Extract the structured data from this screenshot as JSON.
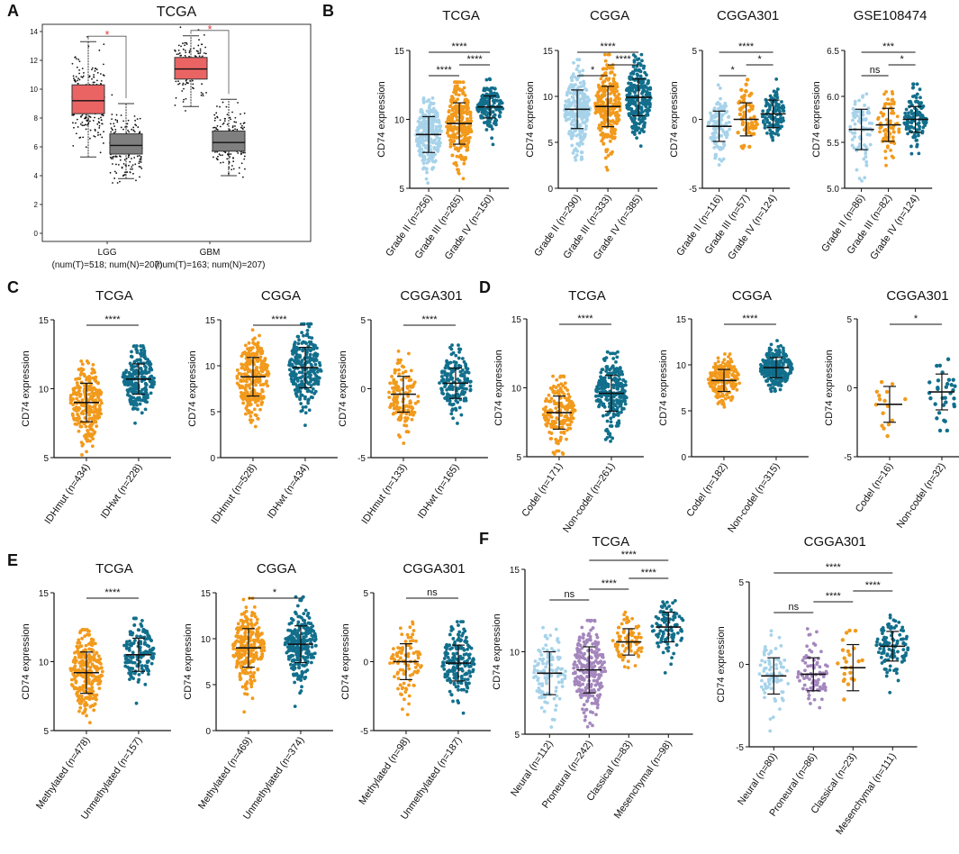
{
  "colors": {
    "light_blue": "#a7d3ea",
    "orange": "#f29a1c",
    "teal": "#126f8c",
    "purple": "#a487bd",
    "box_red": "#ea6464",
    "box_gray": "#7f7f7f",
    "star_red": "#e23b3b"
  },
  "chart_data": [
    {
      "panel": "A",
      "type": "box",
      "title": "TCGA",
      "ylim": [
        0,
        14
      ],
      "yticks": [
        "0",
        "2",
        "4",
        "6",
        "8",
        "10",
        "12",
        "14"
      ],
      "groups": [
        {
          "label": "LGG",
          "sublabel": "(num(T)=518; num(N)=207)",
          "tumor": {
            "q1": 8.3,
            "median": 9.2,
            "q3": 10.3,
            "whisker_low": 5.3,
            "whisker_high": 13.3
          },
          "normal": {
            "q1": 5.5,
            "median": 6.1,
            "q3": 6.9,
            "whisker_low": 3.8,
            "whisker_high": 9.0
          }
        },
        {
          "label": "GBM",
          "sublabel": "(num(T)=163; num(N)=207)",
          "tumor": {
            "q1": 10.7,
            "median": 11.4,
            "q3": 12.2,
            "whisker_low": 8.8,
            "whisker_high": 13.7
          },
          "normal": {
            "q1": 5.7,
            "median": 6.3,
            "q3": 7.1,
            "whisker_low": 4.0,
            "whisker_high": 9.3
          }
        }
      ],
      "significance": [
        "*",
        "*"
      ]
    },
    {
      "panel": "B",
      "type": "scatter",
      "title": "TCGA",
      "ylabel": "CD74 expression",
      "ylim": [
        5,
        15
      ],
      "yticks": [
        "5",
        "10",
        "15"
      ],
      "categories": [
        "Grade II (n=256)",
        "Grade III (n=265)",
        "Grade IV (n=150)"
      ],
      "means": [
        8.9,
        9.7,
        10.9
      ],
      "sds": [
        1.3,
        1.5,
        0.8
      ],
      "spread": [
        2.2,
        2.5,
        1.7
      ],
      "comparisons": [
        {
          "a": 0,
          "b": 1,
          "label": "****"
        },
        {
          "a": 1,
          "b": 2,
          "label": "****"
        },
        {
          "a": 0,
          "b": 2,
          "label": "****"
        }
      ]
    },
    {
      "panel": "",
      "type": "scatter",
      "title": "CGGA",
      "ylabel": "CD74 expression",
      "ylim": [
        0,
        15
      ],
      "yticks": [
        "0",
        "5",
        "10",
        "15"
      ],
      "categories": [
        "Grade II (n=290)",
        "Grade III (n=333)",
        "Grade IV (n=385)"
      ],
      "means": [
        8.6,
        8.9,
        9.9
      ],
      "sds": [
        2.1,
        2.2,
        2.0
      ],
      "spread": [
        4.5,
        4.8,
        4.2
      ],
      "comparisons": [
        {
          "a": 0,
          "b": 1,
          "label": "*"
        },
        {
          "a": 1,
          "b": 2,
          "label": "****"
        },
        {
          "a": 0,
          "b": 2,
          "label": "****"
        }
      ]
    },
    {
      "panel": "",
      "type": "scatter",
      "title": "CGGA301",
      "ylabel": "CD74 expression",
      "ylim": [
        -5,
        5
      ],
      "yticks": [
        "-5",
        "0",
        "5"
      ],
      "categories": [
        "Grade II (n=116)",
        "Grade III (n=57)",
        "Grade IV (n=124)"
      ],
      "means": [
        -0.5,
        0.0,
        0.4
      ],
      "sds": [
        1.1,
        1.2,
        1.0
      ],
      "spread": [
        2.5,
        2.4,
        2.3
      ],
      "comparisons": [
        {
          "a": 0,
          "b": 1,
          "label": "*"
        },
        {
          "a": 1,
          "b": 2,
          "label": "*"
        },
        {
          "a": 0,
          "b": 2,
          "label": "****"
        }
      ]
    },
    {
      "panel": "",
      "type": "scatter",
      "title": "GSE108474",
      "ylabel": "CD74 expression",
      "ylim": [
        5.0,
        6.5
      ],
      "yticks": [
        "5.0",
        "5.5",
        "6.0",
        "6.5"
      ],
      "categories": [
        "Grade II (n=86)",
        "Grade III (n=82)",
        "Grade IV (n=124)"
      ],
      "means": [
        5.64,
        5.69,
        5.75
      ],
      "sds": [
        0.22,
        0.18,
        0.14
      ],
      "spread": [
        0.35,
        0.3,
        0.32
      ],
      "comparisons": [
        {
          "a": 0,
          "b": 1,
          "label": "ns"
        },
        {
          "a": 1,
          "b": 2,
          "label": "*"
        },
        {
          "a": 0,
          "b": 2,
          "label": "***"
        }
      ]
    },
    {
      "panel": "C",
      "type": "scatter",
      "title": "TCGA",
      "ylabel": "CD74 expression",
      "ylim": [
        5,
        15
      ],
      "yticks": [
        "5",
        "10",
        "15"
      ],
      "categories": [
        "IDHmut (n=434)",
        "IDHwt (n=228)"
      ],
      "means": [
        9.0,
        10.7
      ],
      "sds": [
        1.4,
        1.1
      ],
      "spread": [
        2.5,
        2.0
      ],
      "comparisons": [
        {
          "a": 0,
          "b": 1,
          "label": "****"
        }
      ]
    },
    {
      "panel": "",
      "type": "scatter",
      "title": "CGGA",
      "ylabel": "CD74 expression",
      "ylim": [
        0,
        15
      ],
      "yticks": [
        "0",
        "5",
        "10",
        "15"
      ],
      "categories": [
        "IDHmut (n=528)",
        "IDHwt (n=434)"
      ],
      "means": [
        8.8,
        9.8
      ],
      "sds": [
        2.1,
        2.2
      ],
      "spread": [
        4.5,
        4.5
      ],
      "comparisons": [
        {
          "a": 0,
          "b": 1,
          "label": "****"
        }
      ]
    },
    {
      "panel": "",
      "type": "scatter",
      "title": "CGGA301",
      "ylabel": "CD74 expression",
      "ylim": [
        -5,
        5
      ],
      "yticks": [
        "-5",
        "0",
        "5"
      ],
      "categories": [
        "IDHmut (n=133)",
        "IDHwt (n=165)"
      ],
      "means": [
        -0.4,
        0.4
      ],
      "sds": [
        1.3,
        1.1
      ],
      "spread": [
        2.6,
        2.3
      ],
      "comparisons": [
        {
          "a": 0,
          "b": 1,
          "label": "****"
        }
      ]
    },
    {
      "panel": "D",
      "type": "scatter",
      "title": "TCGA",
      "ylabel": "CD74 expression",
      "ylim": [
        5,
        15
      ],
      "yticks": [
        "5",
        "10",
        "15"
      ],
      "categories": [
        "Codel (n=171)",
        "Non-codel (n=261)"
      ],
      "means": [
        8.2,
        9.6
      ],
      "sds": [
        1.2,
        1.3
      ],
      "spread": [
        2.2,
        2.5
      ],
      "comparisons": [
        {
          "a": 0,
          "b": 1,
          "label": "****"
        }
      ]
    },
    {
      "panel": "",
      "type": "scatter",
      "title": "CGGA",
      "ylabel": "CD74 expression",
      "ylim": [
        0,
        15
      ],
      "yticks": [
        "0",
        "5",
        "10",
        "15"
      ],
      "categories": [
        "Codel (n=182)",
        "Non-codel (n=315)"
      ],
      "means": [
        8.3,
        9.7
      ],
      "sds": [
        1.2,
        1.1
      ],
      "spread": [
        2.4,
        2.6
      ],
      "comparisons": [
        {
          "a": 0,
          "b": 1,
          "label": "****"
        }
      ]
    },
    {
      "panel": "",
      "type": "scatter",
      "title": "CGGA301",
      "ylabel": "CD74 expression",
      "ylim": [
        -5,
        5
      ],
      "yticks": [
        "-5",
        "0",
        "5"
      ],
      "categories": [
        "Codel (n=16)",
        "Non-codel (n=32)"
      ],
      "means": [
        -1.2,
        -0.3
      ],
      "sds": [
        1.3,
        1.3
      ],
      "spread": [
        1.6,
        2.0
      ],
      "comparisons": [
        {
          "a": 0,
          "b": 1,
          "label": "*"
        }
      ]
    },
    {
      "panel": "E",
      "type": "scatter",
      "title": "TCGA",
      "ylabel": "CD74 expression",
      "ylim": [
        5,
        15
      ],
      "yticks": [
        "5",
        "10",
        "15"
      ],
      "categories": [
        "Methylated (n=478)",
        "Unmethylated (n=157)"
      ],
      "means": [
        9.2,
        10.5
      ],
      "sds": [
        1.5,
        1.2
      ],
      "spread": [
        2.6,
        2.2
      ],
      "comparisons": [
        {
          "a": 0,
          "b": 1,
          "label": "****"
        }
      ]
    },
    {
      "panel": "",
      "type": "scatter",
      "title": "CGGA",
      "ylabel": "CD74 expression",
      "ylim": [
        0,
        15
      ],
      "yticks": [
        "0",
        "5",
        "10",
        "15"
      ],
      "categories": [
        "Methylated (n=469)",
        "Unmethylated (n=374)"
      ],
      "means": [
        9.0,
        9.4
      ],
      "sds": [
        2.1,
        2.0
      ],
      "spread": [
        4.5,
        4.3
      ],
      "comparisons": [
        {
          "a": 0,
          "b": 1,
          "label": "*"
        }
      ]
    },
    {
      "panel": "",
      "type": "scatter",
      "title": "CGGA301",
      "ylabel": "CD74 expression",
      "ylim": [
        -5,
        5
      ],
      "yticks": [
        "-5",
        "0",
        "5"
      ],
      "categories": [
        "Methylated (n=98)",
        "Unmethylated (n=187)"
      ],
      "means": [
        0.0,
        -0.1
      ],
      "sds": [
        1.3,
        1.3
      ],
      "spread": [
        2.4,
        2.5
      ],
      "comparisons": [
        {
          "a": 0,
          "b": 1,
          "label": "ns"
        }
      ]
    },
    {
      "panel": "F",
      "type": "scatter",
      "title": "TCGA",
      "ylabel": "CD74 expression",
      "ylim": [
        5,
        15
      ],
      "yticks": [
        "5",
        "10",
        "15"
      ],
      "categories": [
        "Neural (n=112)",
        "Proneural (n=242)",
        "Classical (n=83)",
        "Mesenchymal (n=98)"
      ],
      "means": [
        8.7,
        8.9,
        10.6,
        11.5
      ],
      "sds": [
        1.3,
        1.4,
        0.8,
        0.9
      ],
      "spread": [
        2.3,
        2.5,
        1.5,
        1.8
      ],
      "comparisons": [
        {
          "a": 0,
          "b": 1,
          "label": "ns"
        },
        {
          "a": 1,
          "b": 2,
          "label": "****"
        },
        {
          "a": 2,
          "b": 3,
          "label": "****"
        },
        {
          "a": 1,
          "b": 3,
          "label": "****"
        }
      ]
    },
    {
      "panel": "",
      "type": "scatter",
      "title": "CGGA301",
      "ylabel": "CD74 expression",
      "ylim": [
        -5,
        5
      ],
      "yticks": [
        "-5",
        "0",
        "5"
      ],
      "categories": [
        "Neural (n=80)",
        "Proneural (n=86)",
        "Classical (n=23)",
        "Mesenchymal (n=111)"
      ],
      "means": [
        -0.7,
        -0.6,
        -0.2,
        1.1
      ],
      "sds": [
        1.1,
        1.0,
        1.4,
        0.9
      ],
      "spread": [
        2.4,
        2.3,
        2.0,
        1.8
      ],
      "comparisons": [
        {
          "a": 0,
          "b": 1,
          "label": "ns"
        },
        {
          "a": 1,
          "b": 2,
          "label": "****"
        },
        {
          "a": 2,
          "b": 3,
          "label": "****"
        },
        {
          "a": 0,
          "b": 3,
          "label": "****"
        }
      ]
    }
  ]
}
